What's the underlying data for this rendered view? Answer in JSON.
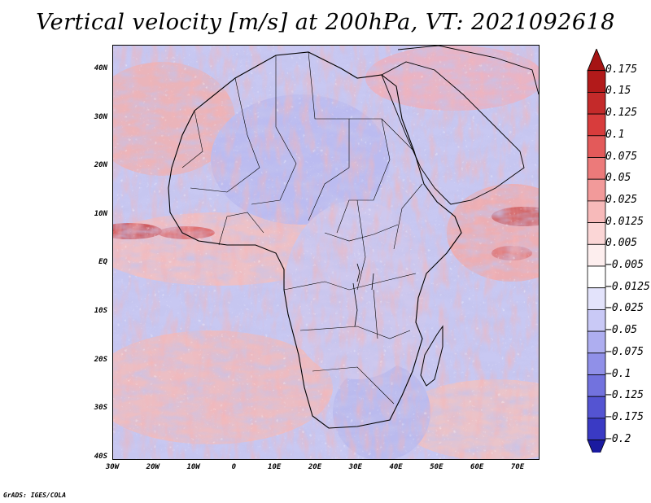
{
  "title": "Vertical velocity [m/s] at 200hPa, VT: 2021092618",
  "credit": "GrADS: IGES/COLA",
  "map": {
    "variable": "Vertical velocity",
    "units": "m/s",
    "level": "200hPa",
    "valid_time": "2021092618",
    "lat_labels": [
      "40N",
      "30N",
      "20N",
      "10N",
      "EQ",
      "10S",
      "20S",
      "30S",
      "40S"
    ],
    "lon_labels": [
      "30W",
      "20W",
      "10W",
      "0",
      "10E",
      "20E",
      "30E",
      "40E",
      "50E",
      "60E",
      "70E"
    ]
  },
  "colorbar": {
    "levels": [
      {
        "label": "0.175",
        "color": "#b21a1a"
      },
      {
        "label": "0.15",
        "color": "#c42a2a"
      },
      {
        "label": "0.125",
        "color": "#d83c3c"
      },
      {
        "label": "0.1",
        "color": "#e35a5a"
      },
      {
        "label": "0.075",
        "color": "#ec7a7a"
      },
      {
        "label": "0.05",
        "color": "#f29a9a"
      },
      {
        "label": "0.025",
        "color": "#f7baba"
      },
      {
        "label": "0.0125",
        "color": "#fbd6d6"
      },
      {
        "label": "0.005",
        "color": "#fdeeee"
      },
      {
        "label": "−0.005",
        "color": "#ffffff"
      },
      {
        "label": "−0.0125",
        "color": "#e3e3fb"
      },
      {
        "label": "−0.025",
        "color": "#c9c9f6"
      },
      {
        "label": "−0.05",
        "color": "#aeaef0"
      },
      {
        "label": "−0.075",
        "color": "#9090e8"
      },
      {
        "label": "−0.1",
        "color": "#7272de"
      },
      {
        "label": "−0.125",
        "color": "#5454d2"
      },
      {
        "label": "−0.175",
        "color": "#3a3ac4"
      },
      {
        "label": "−0.2",
        "color": "#2020b0"
      }
    ],
    "top_color": "#a51414",
    "bottom_color": "#1a1aa0"
  }
}
